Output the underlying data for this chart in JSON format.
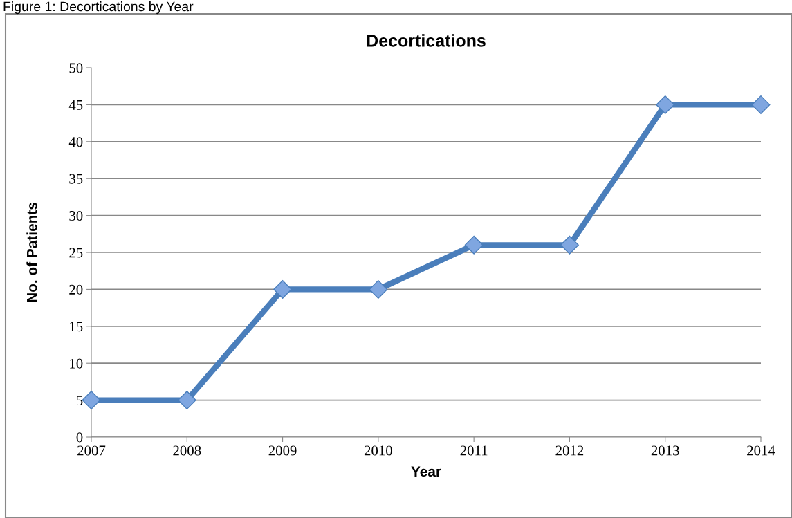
{
  "chart_data": {
    "type": "line",
    "title": "Decortications",
    "xlabel": "Year",
    "ylabel": "No. of Patients",
    "annotations": [
      "Figure 1: Decortications by Year"
    ],
    "categories": [
      "2007",
      "2008",
      "2009",
      "2010",
      "2011",
      "2012",
      "2013",
      "2014"
    ],
    "series": [
      {
        "color": "#4a7ebb",
        "values": [
          5,
          5,
          20,
          20,
          26,
          26,
          45,
          45
        ]
      }
    ],
    "ylim": [
      0,
      50
    ],
    "yticks": [
      0,
      5,
      10,
      15,
      20,
      25,
      30,
      35,
      40,
      45,
      50
    ],
    "grid": "y",
    "marker": "diamond",
    "line_style": "solid"
  }
}
